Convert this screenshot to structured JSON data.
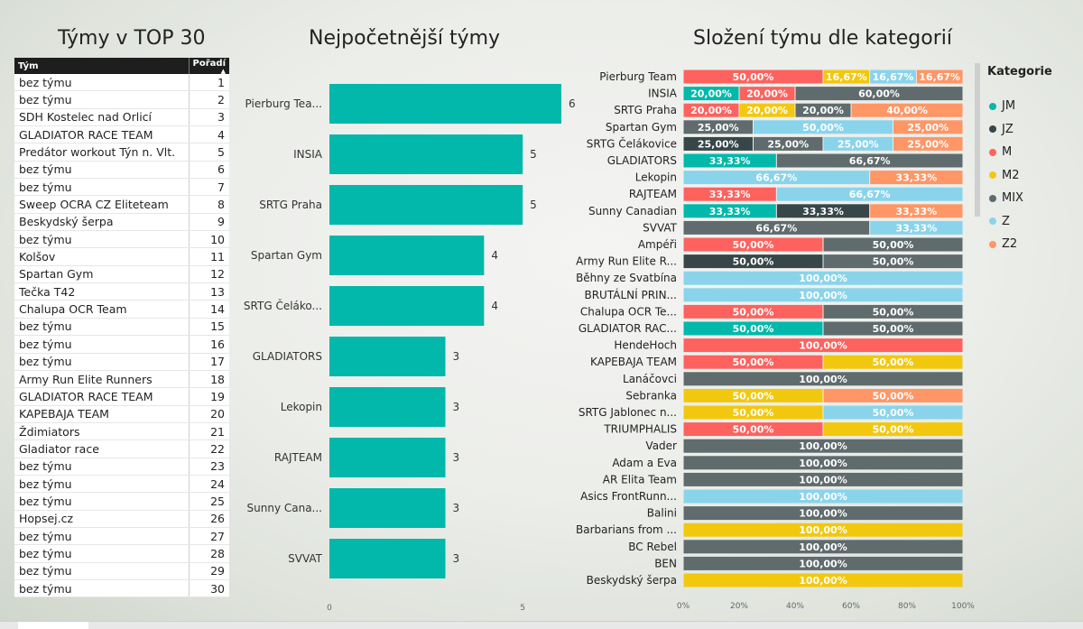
{
  "titles": {
    "table": "Týmy v TOP 30",
    "bar": "Nejpočetnější týmy",
    "stack": "Složení týmu dle kategorií"
  },
  "table": {
    "headers": [
      "Tým",
      "Pořadí"
    ],
    "rows": [
      [
        "bez týmu",
        "1"
      ],
      [
        "bez týmu",
        "2"
      ],
      [
        "SDH Kostelec nad Orlicí",
        "3"
      ],
      [
        "GLADIATOR RACE TEAM",
        "4"
      ],
      [
        "Predátor workout Týn n. Vlt.",
        "5"
      ],
      [
        "bez týmu",
        "6"
      ],
      [
        "bez týmu",
        "7"
      ],
      [
        "Sweep OCRA CZ Eliteteam",
        "8"
      ],
      [
        "Beskydský šerpa",
        "9"
      ],
      [
        "bez týmu",
        "10"
      ],
      [
        "Kolšov",
        "11"
      ],
      [
        "Spartan Gym",
        "12"
      ],
      [
        "Tečka T42",
        "13"
      ],
      [
        "Chalupa OCR Team",
        "14"
      ],
      [
        "bez týmu",
        "15"
      ],
      [
        "bez týmu",
        "16"
      ],
      [
        "bez týmu",
        "17"
      ],
      [
        "Army Run Elite Runners",
        "18"
      ],
      [
        "GLADIATOR RACE TEAM",
        "19"
      ],
      [
        "KAPEBAJA TEAM",
        "20"
      ],
      [
        "Ždimiators",
        "21"
      ],
      [
        "Gladiator race",
        "22"
      ],
      [
        "bez týmu",
        "23"
      ],
      [
        "bez týmu",
        "24"
      ],
      [
        "bez týmu",
        "25"
      ],
      [
        "Hopsej.cz",
        "26"
      ],
      [
        "bez týmu",
        "27"
      ],
      [
        "bez týmu",
        "28"
      ],
      [
        "bez týmu",
        "29"
      ],
      [
        "bez týmu",
        "30"
      ]
    ]
  },
  "chart_data": [
    {
      "type": "bar",
      "orientation": "horizontal",
      "title": "Nejpočetnější týmy",
      "categories": [
        "Pierburg Tea...",
        "INSIA",
        "SRTG Praha",
        "Spartan Gym",
        "SRTG Čeláko...",
        "GLADIATORS",
        "Lekopin",
        "RAJTEAM",
        "Sunny Cana...",
        "SVVAT"
      ],
      "values": [
        6,
        5,
        5,
        4,
        4,
        3,
        3,
        3,
        3,
        3
      ],
      "xlim": [
        0,
        6
      ],
      "xticks": [
        "0",
        "5"
      ],
      "color": "#01B8AA"
    },
    {
      "type": "bar",
      "orientation": "horizontal",
      "stacked": "100%",
      "title": "Složení týmu dle kategorií",
      "legend_title": "Kategorie",
      "legend_position": "right",
      "series_names": [
        "JM",
        "JZ",
        "M",
        "M2",
        "MIX",
        "Z",
        "Z2"
      ],
      "colors": {
        "JM": "#01B8AA",
        "JZ": "#374649",
        "M": "#FD625E",
        "M2": "#F2C80F",
        "MIX": "#5F6B6D",
        "Z": "#8AD4EB",
        "Z2": "#FE9666"
      },
      "xticks": [
        "0%",
        "20%",
        "40%",
        "60%",
        "80%",
        "100%"
      ],
      "categories": [
        "Pierburg Team",
        "INSIA",
        "SRTG Praha",
        "Spartan Gym",
        "SRTG Čelákovice",
        "GLADIATORS",
        "Lekopin",
        "RAJTEAM",
        "Sunny Canadian",
        "SVVAT",
        "Ampéři",
        "Army Run Elite R...",
        "Běhny ze Svatbína",
        "BRUTÁLNÍ PRIN...",
        "Chalupa OCR Te...",
        "GLADIATOR RAC...",
        "HendeHoch",
        "KAPEBAJA TEAM",
        "Lanáčovci",
        "Sebranka",
        "SRTG Jablonec n...",
        "TRIUMPHALIS",
        "Vader",
        "Adam a Eva",
        "AR Elita Team",
        "Asics FrontRunn...",
        "Balini",
        "Barbarians from ...",
        "BC Rebel",
        "BEN",
        "Beskydský šerpa"
      ],
      "rows": [
        [
          [
            "M",
            50,
            "50,00%"
          ],
          [
            "M2",
            16.67,
            "16,67%"
          ],
          [
            "Z",
            16.67,
            "16,67%"
          ],
          [
            "Z2",
            16.67,
            "16,67%"
          ]
        ],
        [
          [
            "JM",
            20,
            "20,00%"
          ],
          [
            "M",
            20,
            "20,00%"
          ],
          [
            "MIX",
            60,
            "60,00%"
          ]
        ],
        [
          [
            "M",
            20,
            "20,00%"
          ],
          [
            "M2",
            20,
            "20,00%"
          ],
          [
            "MIX",
            20,
            "20,00%"
          ],
          [
            "Z2",
            40,
            "40,00%"
          ]
        ],
        [
          [
            "MIX",
            25,
            "25,00%"
          ],
          [
            "Z",
            50,
            "50,00%"
          ],
          [
            "Z2",
            25,
            "25,00%"
          ]
        ],
        [
          [
            "JZ",
            25,
            "25,00%"
          ],
          [
            "MIX",
            25,
            "25,00%"
          ],
          [
            "Z",
            25,
            "25,00%"
          ],
          [
            "Z2",
            25,
            "25,00%"
          ]
        ],
        [
          [
            "JM",
            33.33,
            "33,33%"
          ],
          [
            "MIX",
            66.67,
            "66,67%"
          ]
        ],
        [
          [
            "Z",
            66.67,
            "66,67%"
          ],
          [
            "Z2",
            33.33,
            "33,33%"
          ]
        ],
        [
          [
            "M",
            33.33,
            "33,33%"
          ],
          [
            "Z",
            66.67,
            "66,67%"
          ]
        ],
        [
          [
            "JM",
            33.33,
            "33,33%"
          ],
          [
            "JZ",
            33.33,
            "33,33%"
          ],
          [
            "Z2",
            33.33,
            "33,33%"
          ]
        ],
        [
          [
            "MIX",
            66.67,
            "66,67%"
          ],
          [
            "Z",
            33.33,
            "33,33%"
          ]
        ],
        [
          [
            "M",
            50,
            "50,00%"
          ],
          [
            "MIX",
            50,
            "50,00%"
          ]
        ],
        [
          [
            "JZ",
            50,
            "50,00%"
          ],
          [
            "MIX",
            50,
            "50,00%"
          ]
        ],
        [
          [
            "Z",
            100,
            "100,00%"
          ]
        ],
        [
          [
            "Z",
            100,
            "100,00%"
          ]
        ],
        [
          [
            "M",
            50,
            "50,00%"
          ],
          [
            "MIX",
            50,
            "50,00%"
          ]
        ],
        [
          [
            "JM",
            50,
            "50,00%"
          ],
          [
            "MIX",
            50,
            "50,00%"
          ]
        ],
        [
          [
            "M",
            100,
            "100,00%"
          ]
        ],
        [
          [
            "M",
            50,
            "50,00%"
          ],
          [
            "M2",
            50,
            "50,00%"
          ]
        ],
        [
          [
            "MIX",
            100,
            "100,00%"
          ]
        ],
        [
          [
            "M2",
            50,
            "50,00%"
          ],
          [
            "Z2",
            50,
            "50,00%"
          ]
        ],
        [
          [
            "M2",
            50,
            "50,00%"
          ],
          [
            "Z",
            50,
            "50,00%"
          ]
        ],
        [
          [
            "M",
            50,
            "50,00%"
          ],
          [
            "M2",
            50,
            "50,00%"
          ]
        ],
        [
          [
            "MIX",
            100,
            "100,00%"
          ]
        ],
        [
          [
            "MIX",
            100,
            "100,00%"
          ]
        ],
        [
          [
            "MIX",
            100,
            "100,00%"
          ]
        ],
        [
          [
            "Z",
            100,
            "100,00%"
          ]
        ],
        [
          [
            "MIX",
            100,
            "100,00%"
          ]
        ],
        [
          [
            "M2",
            100,
            "100,00%"
          ]
        ],
        [
          [
            "MIX",
            100,
            "100,00%"
          ]
        ],
        [
          [
            "MIX",
            100,
            "100,00%"
          ]
        ],
        [
          [
            "M2",
            100,
            "100,00%"
          ]
        ]
      ]
    }
  ]
}
